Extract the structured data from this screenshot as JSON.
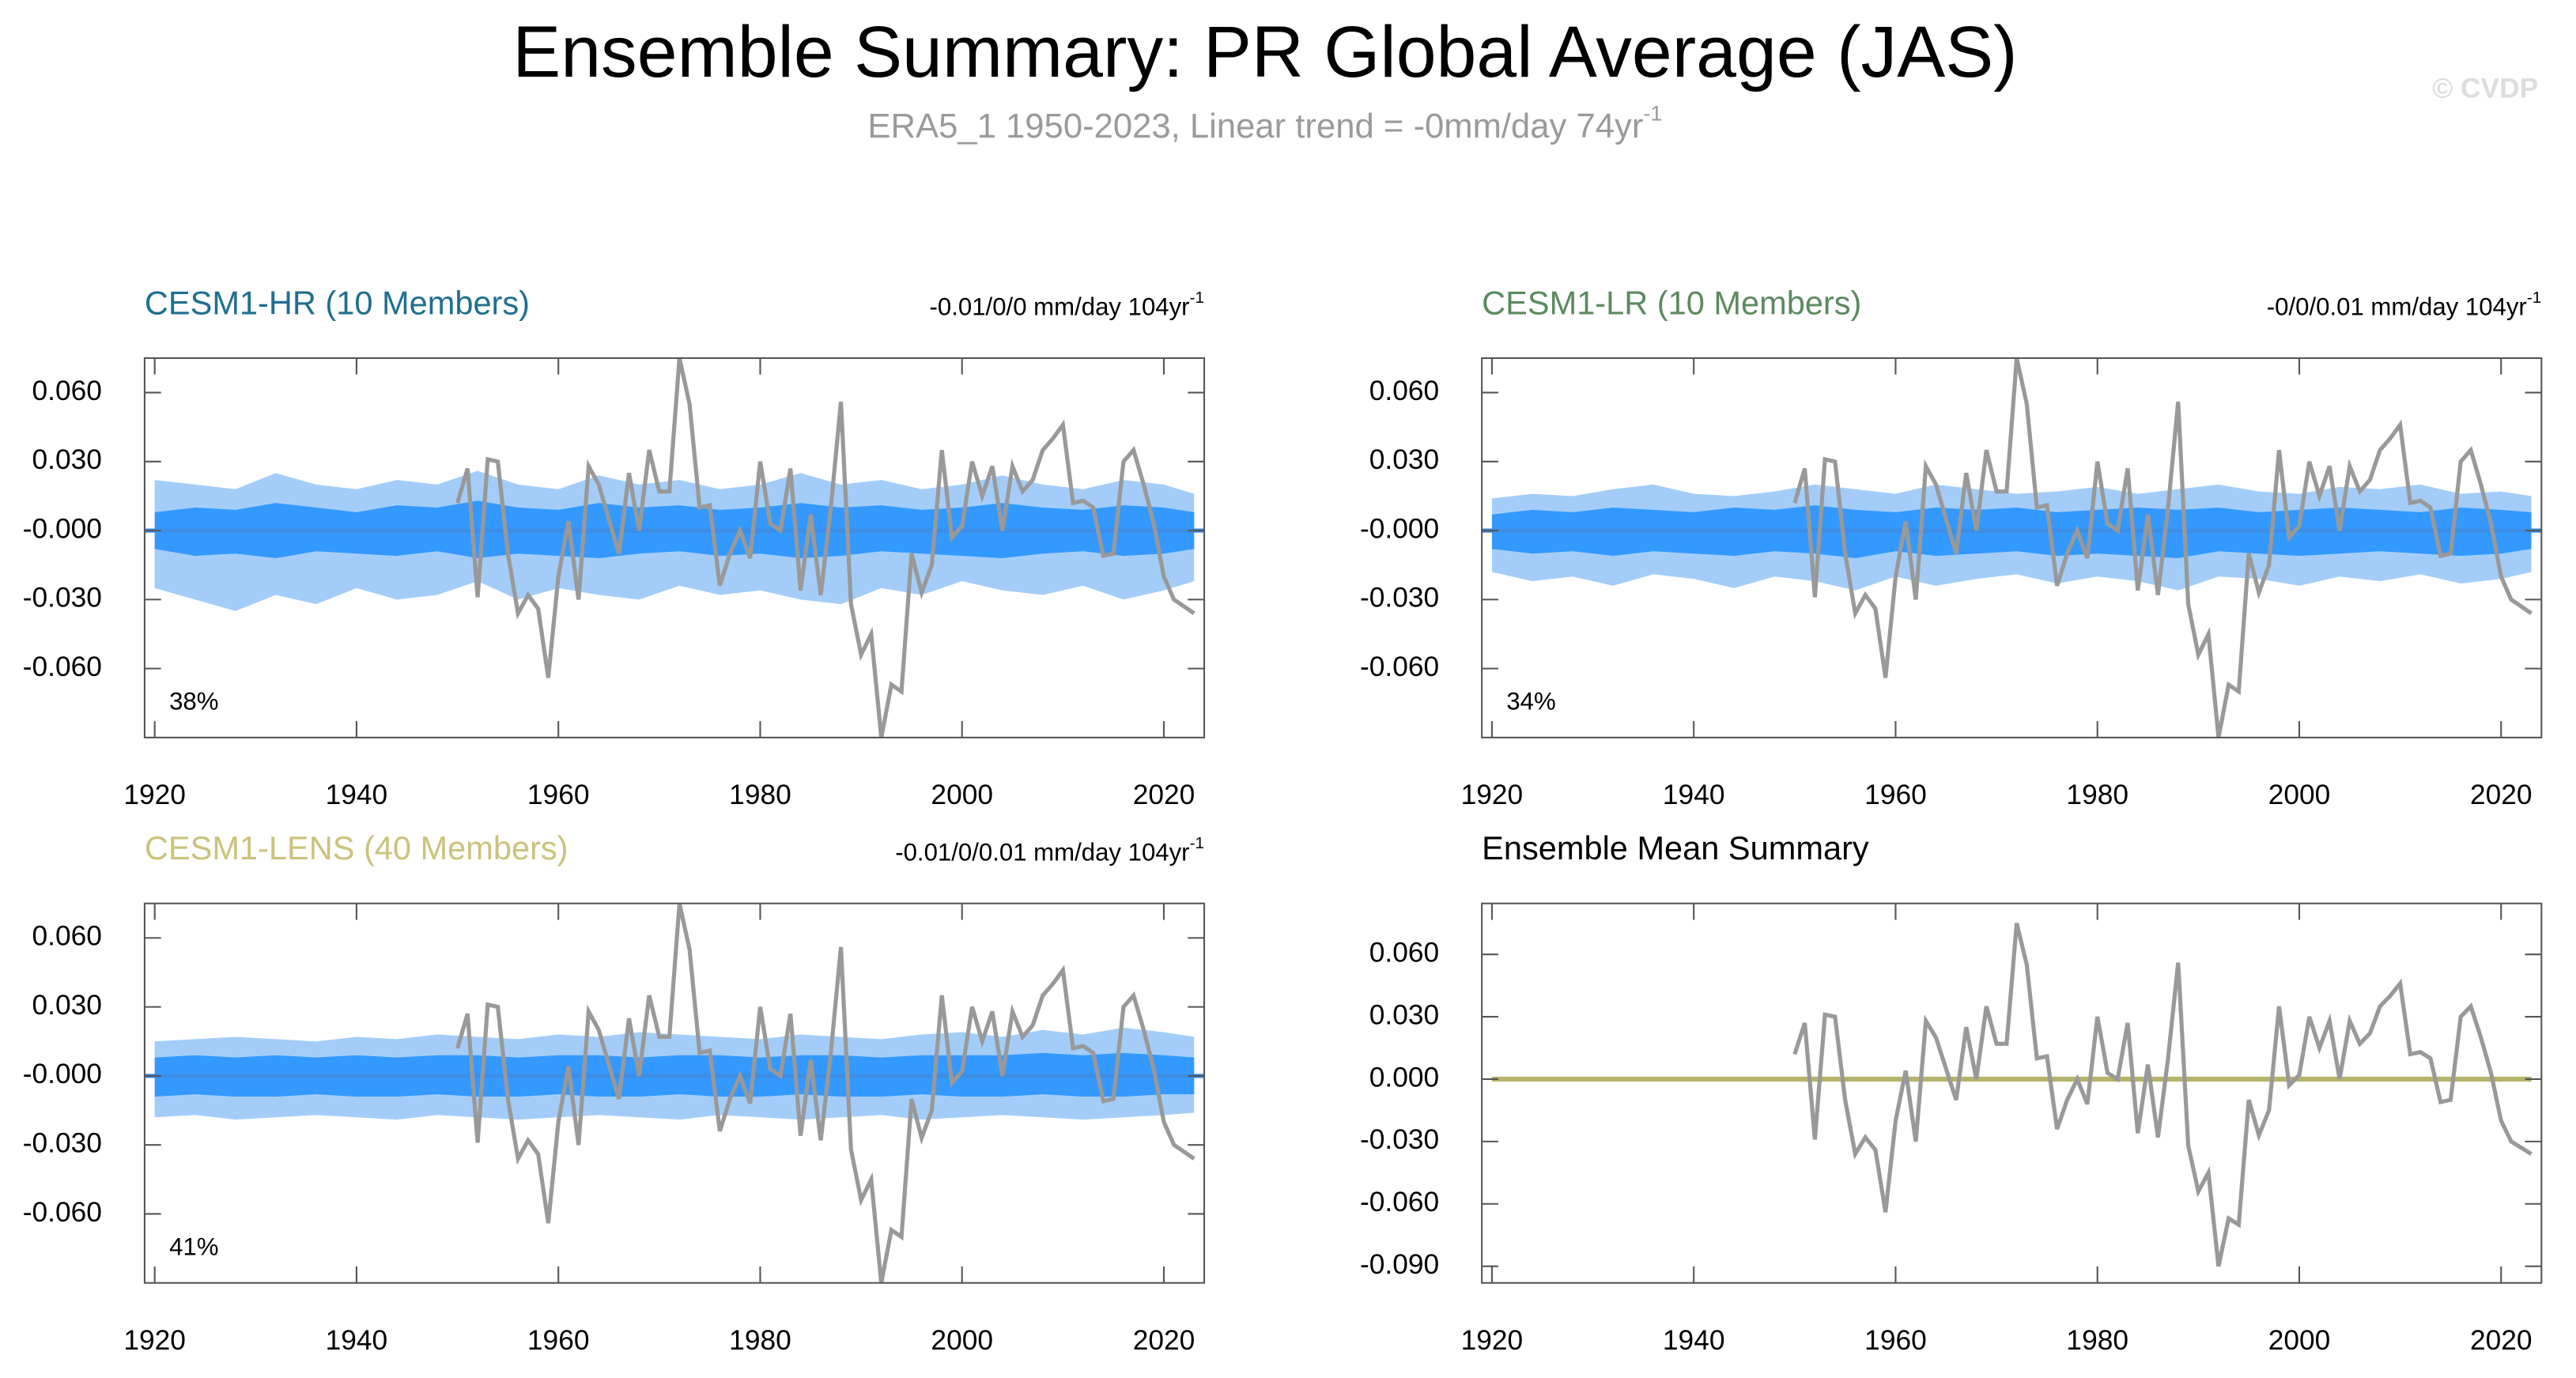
{
  "title": "Ensemble Summary: PR Global Average (JAS)",
  "subtitle": {
    "text": "ERA5_1 1950-2023, Linear trend = -0mm/day 74yr",
    "superscript": "-1"
  },
  "credit": "© CVDP",
  "observations": {
    "color": "#999999",
    "x": [
      1950,
      1951,
      1952,
      1953,
      1954,
      1955,
      1956,
      1957,
      1958,
      1959,
      1960,
      1961,
      1962,
      1963,
      1964,
      1965,
      1966,
      1967,
      1968,
      1969,
      1970,
      1971,
      1972,
      1973,
      1974,
      1975,
      1976,
      1977,
      1978,
      1979,
      1980,
      1981,
      1982,
      1983,
      1984,
      1985,
      1986,
      1987,
      1988,
      1989,
      1990,
      1991,
      1992,
      1993,
      1994,
      1995,
      1996,
      1997,
      1998,
      1999,
      2000,
      2001,
      2002,
      2003,
      2004,
      2005,
      2006,
      2007,
      2008,
      2009,
      2010,
      2011,
      2012,
      2013,
      2014,
      2015,
      2016,
      2017,
      2018,
      2019,
      2020,
      2021,
      2022,
      2023
    ],
    "values": [
      0.012,
      0.027,
      -0.029,
      0.031,
      0.03,
      -0.01,
      -0.036,
      -0.028,
      -0.034,
      -0.064,
      -0.02,
      0.004,
      -0.03,
      0.028,
      0.02,
      0.005,
      -0.01,
      0.025,
      0,
      0.035,
      0.017,
      0.017,
      0.075,
      0.055,
      0.01,
      0.011,
      -0.024,
      -0.01,
      0,
      -0.012,
      0.03,
      0.003,
      0,
      0.027,
      -0.026,
      0.007,
      -0.028,
      0.01,
      0.056,
      -0.032,
      -0.054,
      -0.045,
      -0.09,
      -0.067,
      -0.07,
      -0.01,
      -0.027,
      -0.015,
      0.035,
      -0.003,
      0.002,
      0.03,
      0.015,
      0.028,
      0,
      0.028,
      0.017,
      0.022,
      0.035,
      0.04,
      0.046,
      0.012,
      0.013,
      0.01,
      -0.011,
      -0.01,
      0.03,
      0.035,
      0.02,
      0.003,
      -0.02,
      -0.03,
      -0.033,
      -0.036
    ]
  },
  "chart_data": [
    {
      "type": "ensemble",
      "title": "CESM1-HR (10 Members)",
      "title_color": "#1f6f8f",
      "trend": {
        "text": "-0.01/0/0 mm/day 104yr",
        "superscript": "-1"
      },
      "percent_label": "38%",
      "xlim": [
        1919,
        2024
      ],
      "xticks": [
        1920,
        1940,
        1960,
        1980,
        2000,
        2020
      ],
      "ylim": [
        -0.09,
        0.075
      ],
      "yticks": [
        {
          "value": -0.06,
          "label": "-0.060"
        },
        {
          "value": -0.03,
          "label": "-0.030"
        },
        {
          "value": 0,
          "label": "-0.000"
        },
        {
          "value": 0.03,
          "label": "0.030"
        },
        {
          "value": 0.06,
          "label": "0.060"
        }
      ],
      "outer_color": "#a3cdf8",
      "inner_color": "#3399ff",
      "mean_color": "#3d8ee6",
      "mean": 0,
      "x": [
        1920,
        1924,
        1928,
        1932,
        1936,
        1940,
        1944,
        1948,
        1952,
        1956,
        1960,
        1964,
        1968,
        1972,
        1976,
        1980,
        1984,
        1988,
        1992,
        1996,
        2000,
        2004,
        2008,
        2012,
        2016,
        2020,
        2023
      ],
      "outer_high": [
        0.022,
        0.02,
        0.018,
        0.025,
        0.02,
        0.018,
        0.022,
        0.02,
        0.026,
        0.02,
        0.018,
        0.024,
        0.02,
        0.022,
        0.018,
        0.02,
        0.025,
        0.02,
        0.022,
        0.018,
        0.02,
        0.024,
        0.02,
        0.018,
        0.022,
        0.02,
        0.016
      ],
      "outer_low": [
        -0.025,
        -0.03,
        -0.035,
        -0.028,
        -0.032,
        -0.025,
        -0.03,
        -0.028,
        -0.022,
        -0.03,
        -0.025,
        -0.028,
        -0.03,
        -0.024,
        -0.028,
        -0.026,
        -0.03,
        -0.032,
        -0.025,
        -0.028,
        -0.022,
        -0.026,
        -0.028,
        -0.024,
        -0.03,
        -0.026,
        -0.022
      ],
      "inner_high": [
        0.008,
        0.01,
        0.009,
        0.012,
        0.01,
        0.008,
        0.011,
        0.01,
        0.013,
        0.01,
        0.009,
        0.012,
        0.01,
        0.011,
        0.009,
        0.01,
        0.012,
        0.01,
        0.011,
        0.009,
        0.01,
        0.012,
        0.01,
        0.009,
        0.011,
        0.01,
        0.008
      ],
      "inner_low": [
        -0.008,
        -0.011,
        -0.01,
        -0.012,
        -0.009,
        -0.01,
        -0.011,
        -0.009,
        -0.012,
        -0.01,
        -0.011,
        -0.012,
        -0.01,
        -0.009,
        -0.011,
        -0.01,
        -0.012,
        -0.011,
        -0.009,
        -0.01,
        -0.011,
        -0.012,
        -0.01,
        -0.009,
        -0.011,
        -0.01,
        -0.008
      ]
    },
    {
      "type": "ensemble",
      "title": "CESM1-LR (10 Members)",
      "title_color": "#5b8a5f",
      "trend": {
        "text": "-0/0/0.01 mm/day 104yr",
        "superscript": "-1"
      },
      "percent_label": "34%",
      "xlim": [
        1919,
        2024
      ],
      "xticks": [
        1920,
        1940,
        1960,
        1980,
        2000,
        2020
      ],
      "ylim": [
        -0.09,
        0.075
      ],
      "yticks": [
        {
          "value": -0.06,
          "label": "-0.060"
        },
        {
          "value": -0.03,
          "label": "-0.030"
        },
        {
          "value": 0,
          "label": "-0.000"
        },
        {
          "value": 0.03,
          "label": "0.030"
        },
        {
          "value": 0.06,
          "label": "0.060"
        }
      ],
      "outer_color": "#a3cdf8",
      "inner_color": "#3399ff",
      "mean_color": "#3d8ee6",
      "mean": 0,
      "x": [
        1920,
        1924,
        1928,
        1932,
        1936,
        1940,
        1944,
        1948,
        1952,
        1956,
        1960,
        1964,
        1968,
        1972,
        1976,
        1980,
        1984,
        1988,
        1992,
        1996,
        2000,
        2004,
        2008,
        2012,
        2016,
        2020,
        2023
      ],
      "outer_high": [
        0.014,
        0.016,
        0.015,
        0.018,
        0.02,
        0.016,
        0.015,
        0.017,
        0.02,
        0.018,
        0.016,
        0.02,
        0.018,
        0.016,
        0.017,
        0.019,
        0.016,
        0.018,
        0.02,
        0.017,
        0.016,
        0.019,
        0.018,
        0.02,
        0.016,
        0.017,
        0.015
      ],
      "outer_low": [
        -0.018,
        -0.022,
        -0.02,
        -0.024,
        -0.019,
        -0.021,
        -0.025,
        -0.02,
        -0.022,
        -0.026,
        -0.02,
        -0.024,
        -0.021,
        -0.019,
        -0.023,
        -0.02,
        -0.022,
        -0.026,
        -0.02,
        -0.021,
        -0.024,
        -0.02,
        -0.022,
        -0.019,
        -0.023,
        -0.021,
        -0.018
      ],
      "inner_high": [
        0.007,
        0.009,
        0.008,
        0.01,
        0.009,
        0.008,
        0.01,
        0.009,
        0.011,
        0.009,
        0.008,
        0.01,
        0.009,
        0.01,
        0.008,
        0.009,
        0.01,
        0.009,
        0.01,
        0.008,
        0.009,
        0.01,
        0.009,
        0.008,
        0.01,
        0.009,
        0.008
      ],
      "inner_low": [
        -0.008,
        -0.01,
        -0.009,
        -0.011,
        -0.009,
        -0.01,
        -0.011,
        -0.009,
        -0.01,
        -0.012,
        -0.009,
        -0.011,
        -0.01,
        -0.009,
        -0.011,
        -0.01,
        -0.011,
        -0.012,
        -0.009,
        -0.01,
        -0.011,
        -0.01,
        -0.009,
        -0.01,
        -0.011,
        -0.01,
        -0.008
      ]
    },
    {
      "type": "ensemble",
      "title": "CESM1-LENS (40 Members)",
      "title_color": "#cbc27c",
      "trend": {
        "text": "-0.01/0/0.01 mm/day 104yr",
        "superscript": "-1"
      },
      "percent_label": "41%",
      "xlim": [
        1919,
        2024
      ],
      "xticks": [
        1920,
        1940,
        1960,
        1980,
        2000,
        2020
      ],
      "ylim": [
        -0.09,
        0.075
      ],
      "yticks": [
        {
          "value": -0.06,
          "label": "-0.060"
        },
        {
          "value": -0.03,
          "label": "-0.030"
        },
        {
          "value": 0,
          "label": "-0.000"
        },
        {
          "value": 0.03,
          "label": "0.030"
        },
        {
          "value": 0.06,
          "label": "0.060"
        }
      ],
      "outer_color": "#a3cdf8",
      "inner_color": "#3399ff",
      "mean_color": "#3d8ee6",
      "mean": 0,
      "x": [
        1920,
        1924,
        1928,
        1932,
        1936,
        1940,
        1944,
        1948,
        1952,
        1956,
        1960,
        1964,
        1968,
        1972,
        1976,
        1980,
        1984,
        1988,
        1992,
        1996,
        2000,
        2004,
        2008,
        2012,
        2016,
        2020,
        2023
      ],
      "outer_high": [
        0.015,
        0.016,
        0.017,
        0.016,
        0.015,
        0.017,
        0.016,
        0.018,
        0.017,
        0.016,
        0.018,
        0.017,
        0.019,
        0.018,
        0.017,
        0.016,
        0.018,
        0.017,
        0.016,
        0.018,
        0.019,
        0.017,
        0.02,
        0.018,
        0.021,
        0.019,
        0.017
      ],
      "outer_low": [
        -0.018,
        -0.017,
        -0.019,
        -0.018,
        -0.017,
        -0.018,
        -0.019,
        -0.017,
        -0.018,
        -0.019,
        -0.018,
        -0.017,
        -0.018,
        -0.019,
        -0.017,
        -0.018,
        -0.019,
        -0.018,
        -0.017,
        -0.019,
        -0.018,
        -0.017,
        -0.018,
        -0.019,
        -0.018,
        -0.017,
        -0.016
      ],
      "inner_high": [
        0.008,
        0.009,
        0.008,
        0.009,
        0.008,
        0.009,
        0.008,
        0.009,
        0.009,
        0.008,
        0.009,
        0.009,
        0.008,
        0.009,
        0.009,
        0.008,
        0.009,
        0.009,
        0.008,
        0.009,
        0.009,
        0.009,
        0.01,
        0.009,
        0.01,
        0.009,
        0.008
      ],
      "inner_low": [
        -0.009,
        -0.008,
        -0.009,
        -0.009,
        -0.008,
        -0.009,
        -0.009,
        -0.008,
        -0.009,
        -0.009,
        -0.008,
        -0.009,
        -0.009,
        -0.008,
        -0.009,
        -0.009,
        -0.008,
        -0.009,
        -0.009,
        -0.008,
        -0.009,
        -0.009,
        -0.008,
        -0.009,
        -0.009,
        -0.008,
        -0.008
      ]
    },
    {
      "type": "summary",
      "title": "Ensemble Mean Summary",
      "title_color": "#000000",
      "xlim": [
        1919,
        2024
      ],
      "xticks": [
        1920,
        1940,
        1960,
        1980,
        2000,
        2020
      ],
      "ylim": [
        -0.098,
        0.0845
      ],
      "yticks": [
        {
          "value": -0.09,
          "label": "-0.090"
        },
        {
          "value": -0.06,
          "label": "-0.060"
        },
        {
          "value": -0.03,
          "label": "-0.030"
        },
        {
          "value": 0,
          "label": "0.000"
        },
        {
          "value": 0.03,
          "label": "0.030"
        },
        {
          "value": 0.06,
          "label": "0.060"
        }
      ],
      "mean_line": {
        "color": "#b5b36a",
        "x": [
          1920,
          2023
        ],
        "values": [
          0,
          0
        ]
      }
    }
  ]
}
